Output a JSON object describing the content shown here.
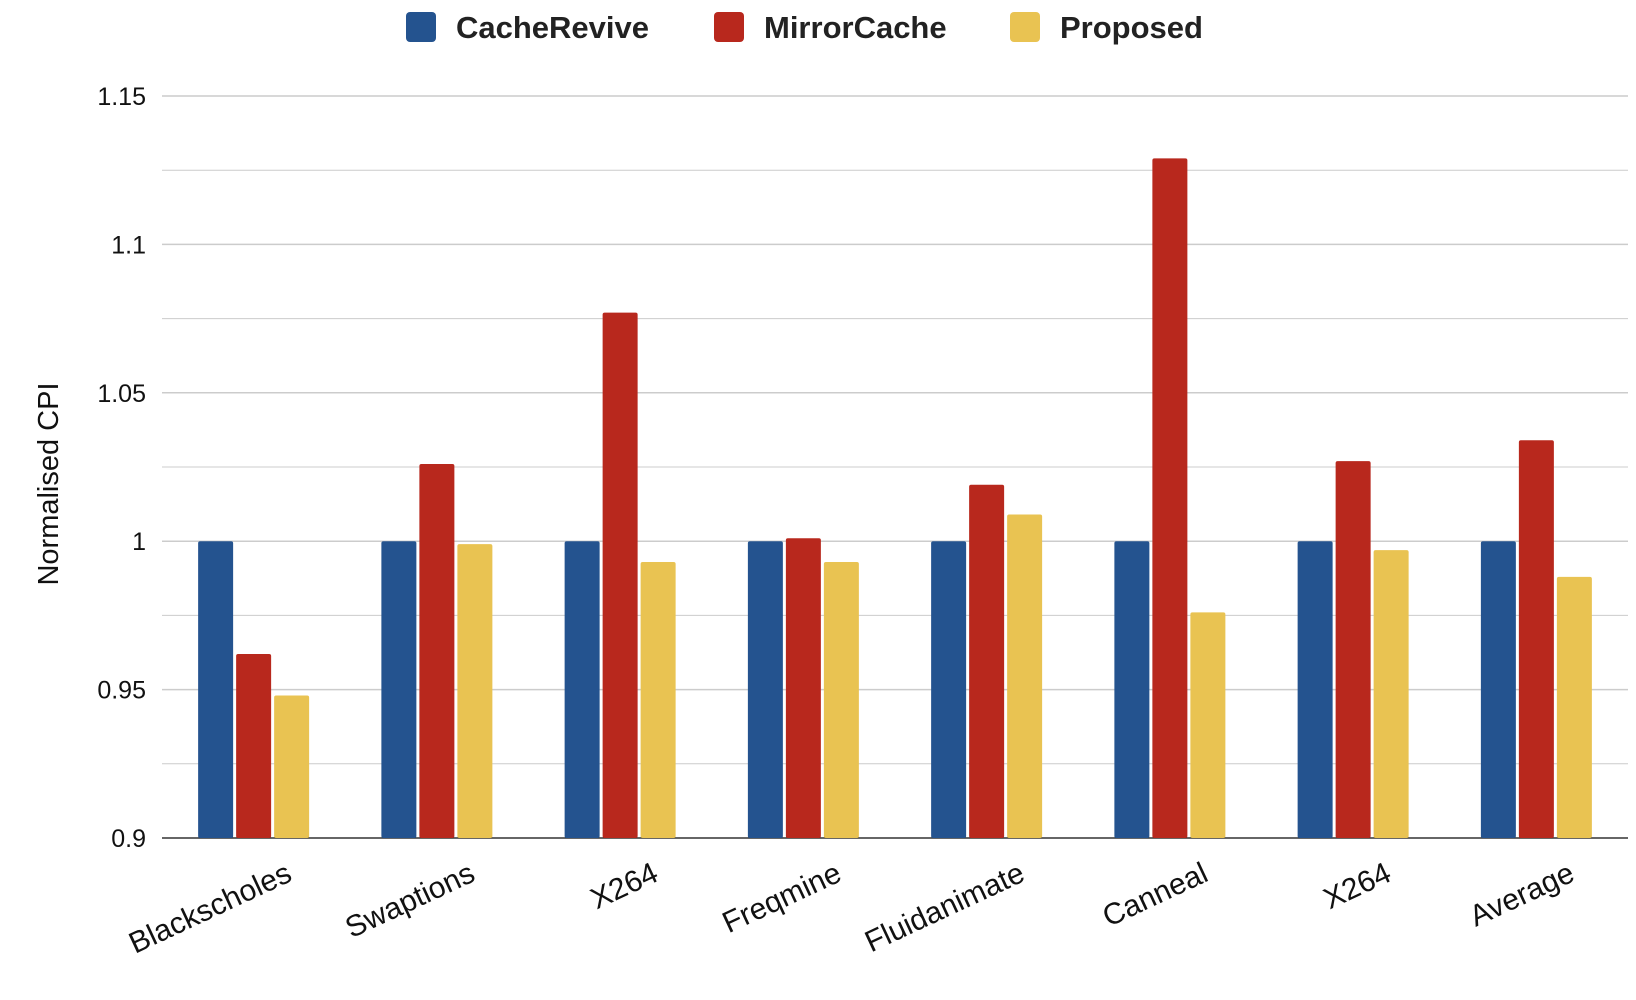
{
  "chart_data": {
    "type": "bar",
    "title": "",
    "xlabel": "",
    "ylabel": "Normalised CPI",
    "ylim": [
      0.9,
      1.15
    ],
    "yticks": [
      0.9,
      0.95,
      1,
      1.05,
      1.1,
      1.15
    ],
    "ytick_labels": [
      "0.9",
      "0.95",
      "1",
      "1.05",
      "1.1",
      "1.15"
    ],
    "minor_grid": true,
    "legend_position": "top-center",
    "categories": [
      "Blackscholes",
      "Swaptions",
      "X264",
      "Freqmine",
      "Fluidanimate",
      "Canneal",
      "X264",
      "Average"
    ],
    "series": [
      {
        "name": "CacheRevive",
        "color": "#24538f",
        "values": [
          1.0,
          1.0,
          1.0,
          1.0,
          1.0,
          1.0,
          1.0,
          1.0
        ]
      },
      {
        "name": "MirrorCache",
        "color": "#b8281d",
        "values": [
          0.962,
          1.026,
          1.077,
          1.001,
          1.019,
          1.129,
          1.027,
          1.034
        ]
      },
      {
        "name": "Proposed",
        "color": "#e9c352",
        "values": [
          0.948,
          0.999,
          0.993,
          0.993,
          1.009,
          0.976,
          0.997,
          0.988
        ]
      }
    ]
  }
}
